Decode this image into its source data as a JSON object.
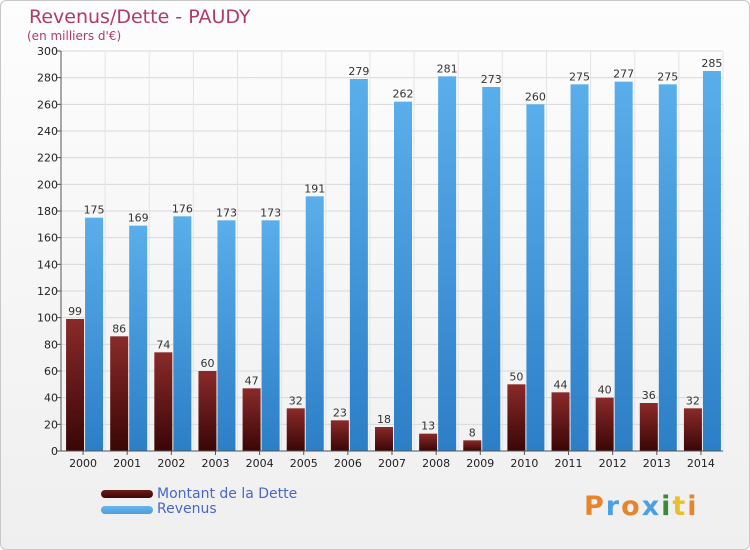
{
  "title": "Revenus/Dette - PAUDY",
  "subtitle": "(en milliers d'€)",
  "legend": [
    {
      "label": "Montant de la Dette",
      "color": "#6b1a1a"
    },
    {
      "label": "Revenus",
      "color": "#4a9ee0"
    }
  ],
  "logo": {
    "letters": [
      "P",
      "r",
      "o",
      "x",
      "i",
      "t",
      "i"
    ],
    "colors": [
      "#e8842c",
      "#4aa0e0",
      "#e8842c",
      "#4aa0e0",
      "#3a8a3a",
      "#e8c02c",
      "#e8842c"
    ]
  },
  "chart_data": {
    "type": "bar",
    "categories": [
      "2000",
      "2001",
      "2002",
      "2003",
      "2004",
      "2005",
      "2006",
      "2007",
      "2008",
      "2009",
      "2010",
      "2011",
      "2012",
      "2013",
      "2014"
    ],
    "series": [
      {
        "name": "Montant de la Dette",
        "values": [
          99,
          86,
          74,
          60,
          47,
          32,
          23,
          18,
          13,
          8,
          50,
          44,
          40,
          36,
          32
        ],
        "color": "#6b1a1a"
      },
      {
        "name": "Revenus",
        "values": [
          175,
          169,
          176,
          173,
          173,
          191,
          279,
          262,
          281,
          273,
          260,
          275,
          277,
          275,
          285
        ],
        "color": "#4a9ee0"
      }
    ],
    "ylim": [
      0,
      300
    ],
    "yticks": [
      0,
      20,
      40,
      60,
      80,
      100,
      120,
      140,
      160,
      180,
      200,
      220,
      240,
      260,
      280,
      300
    ],
    "grid": true
  }
}
